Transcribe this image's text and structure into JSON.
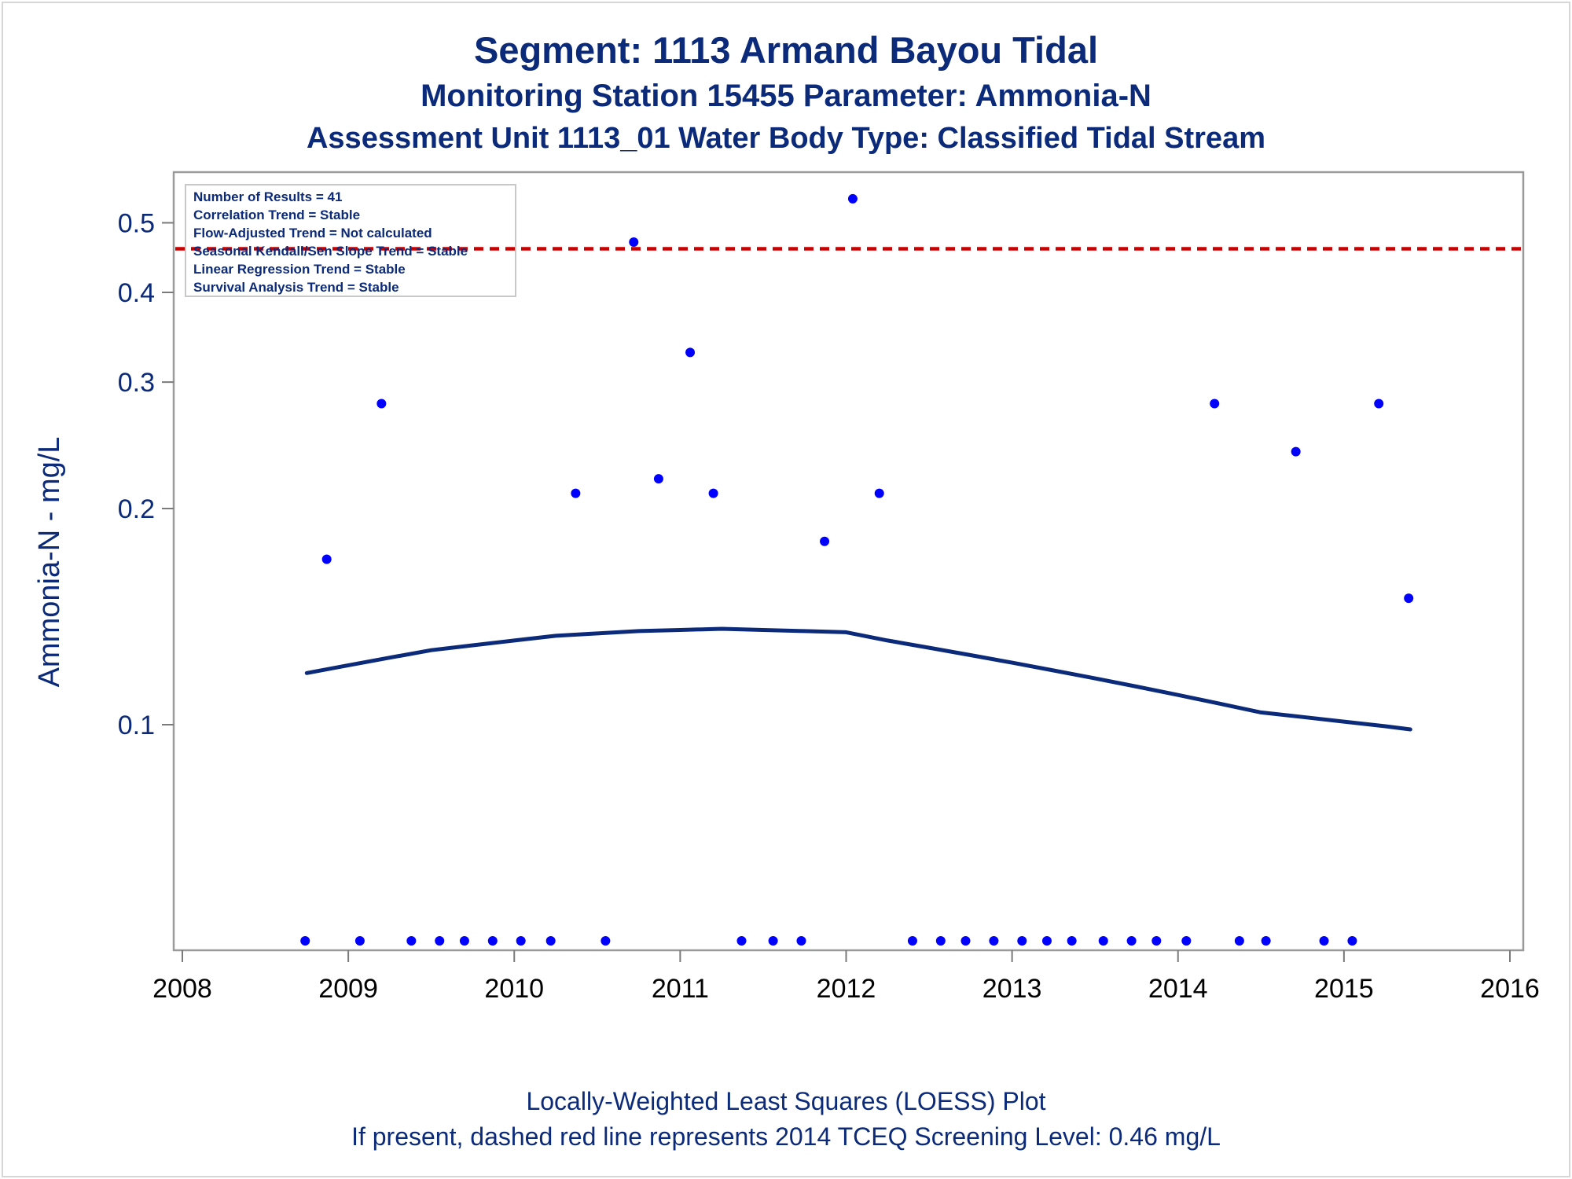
{
  "titles": {
    "line1": "Segment: 1113  Armand Bayou Tidal",
    "line2": "Monitoring Station 15455 Parameter: Ammonia-N",
    "line3": "Assessment Unit 1113_01   Water Body Type: Classified Tidal Stream"
  },
  "footnotes": {
    "line1": "Locally-Weighted Least Squares (LOESS) Plot",
    "line2": "If present, dashed red line represents 2014 TCEQ Screening Level: 0.46 mg/L"
  },
  "chart_data": {
    "type": "scatter",
    "title": "Segment: 1113  Armand Bayou Tidal",
    "xlabel": "",
    "ylabel": "Ammonia-N - mg/L",
    "y_scale": "log",
    "xlim": [
      2008,
      2016
    ],
    "ylim": [
      0.05,
      0.58
    ],
    "x_ticks": [
      2008,
      2009,
      2010,
      2011,
      2012,
      2013,
      2014,
      2015,
      2016
    ],
    "y_ticks": [
      0.1,
      0.2,
      0.3,
      0.4,
      0.5
    ],
    "grid": false,
    "colors": {
      "points": "#0000ff",
      "loess": "#0c2a7a",
      "screening": "#cc0000",
      "text": "#0c2a7a"
    },
    "stats_box": [
      "Number of Results = 41",
      "Correlation Trend = Stable",
      "Flow-Adjusted Trend = Not calculated",
      "Seasonal Kendall/Sen Slope Trend = Stable",
      "Linear Regression Trend = Stable",
      "Survival Analysis Trend = Stable"
    ],
    "screening_level": 0.46,
    "points": [
      {
        "x": 2008.74,
        "y": 0.05
      },
      {
        "x": 2008.87,
        "y": 0.17
      },
      {
        "x": 2009.07,
        "y": 0.05
      },
      {
        "x": 2009.2,
        "y": 0.28
      },
      {
        "x": 2009.38,
        "y": 0.05
      },
      {
        "x": 2009.55,
        "y": 0.05
      },
      {
        "x": 2009.7,
        "y": 0.05
      },
      {
        "x": 2009.87,
        "y": 0.05
      },
      {
        "x": 2010.04,
        "y": 0.05
      },
      {
        "x": 2010.22,
        "y": 0.05
      },
      {
        "x": 2010.37,
        "y": 0.21
      },
      {
        "x": 2010.55,
        "y": 0.05
      },
      {
        "x": 2010.72,
        "y": 0.47
      },
      {
        "x": 2010.87,
        "y": 0.22
      },
      {
        "x": 2011.06,
        "y": 0.33
      },
      {
        "x": 2011.2,
        "y": 0.21
      },
      {
        "x": 2011.37,
        "y": 0.05
      },
      {
        "x": 2011.56,
        "y": 0.05
      },
      {
        "x": 2011.73,
        "y": 0.05
      },
      {
        "x": 2011.87,
        "y": 0.18
      },
      {
        "x": 2012.04,
        "y": 0.54
      },
      {
        "x": 2012.2,
        "y": 0.21
      },
      {
        "x": 2012.4,
        "y": 0.05
      },
      {
        "x": 2012.57,
        "y": 0.05
      },
      {
        "x": 2012.72,
        "y": 0.05
      },
      {
        "x": 2012.89,
        "y": 0.05
      },
      {
        "x": 2013.06,
        "y": 0.05
      },
      {
        "x": 2013.21,
        "y": 0.05
      },
      {
        "x": 2013.36,
        "y": 0.05
      },
      {
        "x": 2013.55,
        "y": 0.05
      },
      {
        "x": 2013.72,
        "y": 0.05
      },
      {
        "x": 2013.87,
        "y": 0.05
      },
      {
        "x": 2014.05,
        "y": 0.05
      },
      {
        "x": 2014.22,
        "y": 0.28
      },
      {
        "x": 2014.37,
        "y": 0.05
      },
      {
        "x": 2014.53,
        "y": 0.05
      },
      {
        "x": 2014.71,
        "y": 0.24
      },
      {
        "x": 2014.88,
        "y": 0.05
      },
      {
        "x": 2015.05,
        "y": 0.05
      },
      {
        "x": 2015.21,
        "y": 0.28
      },
      {
        "x": 2015.39,
        "y": 0.15
      }
    ],
    "loess": {
      "x": [
        2008.75,
        2009.0,
        2009.25,
        2009.5,
        2009.75,
        2010.0,
        2010.25,
        2010.5,
        2010.75,
        2011.0,
        2011.25,
        2011.5,
        2011.75,
        2012.0,
        2012.25,
        2012.5,
        2012.75,
        2013.0,
        2013.25,
        2013.5,
        2013.75,
        2014.0,
        2014.25,
        2014.5,
        2014.75,
        2015.0,
        2015.25,
        2015.4
      ],
      "y": [
        0.118,
        0.121,
        0.124,
        0.127,
        0.129,
        0.131,
        0.133,
        0.134,
        0.135,
        0.1355,
        0.136,
        0.1355,
        0.135,
        0.1345,
        0.131,
        0.128,
        0.125,
        0.122,
        0.119,
        0.116,
        0.113,
        0.11,
        0.107,
        0.104,
        0.1025,
        0.101,
        0.0995,
        0.0985
      ]
    }
  }
}
